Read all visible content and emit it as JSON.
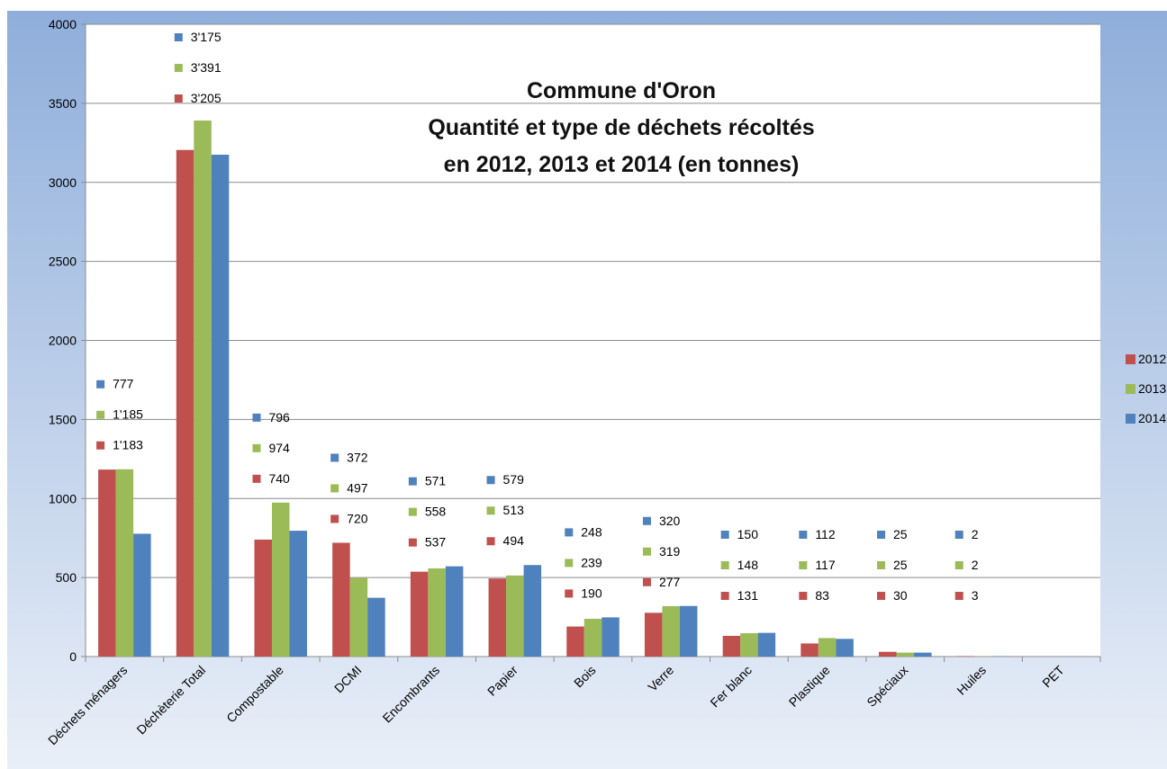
{
  "chart_data": {
    "type": "bar",
    "title_lines": [
      "Commune d'Oron",
      "Quantité et type de déchets récoltés",
      "en 2012, 2013 et 2014  (en tonnes)"
    ],
    "categories": [
      "Déchets ménagers",
      "Déchèterie Total",
      "Compostable",
      "DCMI",
      "Encombrants",
      "Papier",
      "Bois",
      "Verre",
      "Fer blanc",
      "Plastique",
      "Spéciaux",
      "Huiles",
      "PET"
    ],
    "series": [
      {
        "name": "2012",
        "color": "#C0504D",
        "values": [
          1183,
          3205,
          740,
          720,
          537,
          494,
          190,
          277,
          131,
          83,
          30,
          3,
          0
        ]
      },
      {
        "name": "2013",
        "color": "#9BBB59",
        "values": [
          1185,
          3391,
          974,
          497,
          558,
          513,
          239,
          319,
          148,
          117,
          25,
          2,
          0
        ]
      },
      {
        "name": "2014",
        "color": "#4F81BD",
        "values": [
          777,
          3175,
          796,
          372,
          571,
          579,
          248,
          320,
          150,
          112,
          25,
          2,
          0
        ]
      }
    ],
    "data_labels": [
      {
        "category": "Déchets ménagers",
        "2012": "1'183",
        "2013": "1'185",
        "2014": "777"
      },
      {
        "category": "Déchèterie Total",
        "2012": "3'205",
        "2013": "3'391",
        "2014": "3'175"
      },
      {
        "category": "Compostable",
        "2012": "740",
        "2013": "974",
        "2014": "796"
      },
      {
        "category": "DCMI",
        "2012": "720",
        "2013": "497",
        "2014": "372"
      },
      {
        "category": "Encombrants",
        "2012": "537",
        "2013": "558",
        "2014": "571"
      },
      {
        "category": "Papier",
        "2012": "494",
        "2013": "513",
        "2014": "579"
      },
      {
        "category": "Bois",
        "2012": "190",
        "2013": "239",
        "2014": "248"
      },
      {
        "category": "Verre",
        "2012": "277",
        "2013": "319",
        "2014": "320"
      },
      {
        "category": "Fer blanc",
        "2012": "131",
        "2013": "148",
        "2014": "150"
      },
      {
        "category": "Plastique",
        "2012": "83",
        "2013": "117",
        "2014": "112"
      },
      {
        "category": "Spéciaux",
        "2012": "30",
        "2013": "25",
        "2014": "25"
      },
      {
        "category": "Huiles",
        "2012": "3",
        "2013": "2",
        "2014": "2"
      }
    ],
    "y_ticks": [
      "0",
      "500",
      "1000",
      "1500",
      "2000",
      "2500",
      "3000",
      "3500",
      "4000"
    ],
    "ylim": [
      0,
      4000
    ],
    "grid": true,
    "legend_position": "right",
    "background_colors": [
      "#8FAEDB",
      "#E9EFF8"
    ]
  }
}
